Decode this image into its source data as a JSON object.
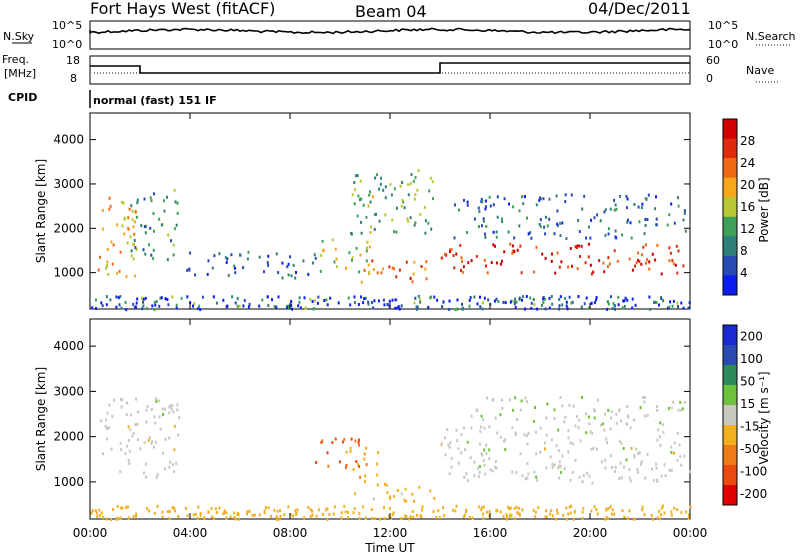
{
  "header": {
    "station": "Fort Hays West (fitACF)",
    "beam": "Beam 04",
    "date": "04/Dec/2011"
  },
  "strips": {
    "nsky_label": "N.Sky",
    "nsearch_label": "N.Search",
    "noise_ticks": [
      "10^5",
      "10^0"
    ],
    "freq_label": "Freq.",
    "freq_unit": "[MHz]",
    "freq_ticks": [
      "18",
      "8"
    ],
    "nave_label": "Nave",
    "nave_ticks": [
      "60",
      "0"
    ],
    "cpid_label": "CPID",
    "cpid_value": "normal (fast) 151 IF"
  },
  "chart_data": [
    {
      "type": "heatmap",
      "parameter": "Power",
      "xlabel": "Time UT",
      "ylabel": "Slant Range [km]",
      "x_ticks": [
        "00:00",
        "04:00",
        "08:00",
        "12:00",
        "16:00",
        "20:00",
        "00:00"
      ],
      "xlim_hours": [
        0,
        24
      ],
      "y_ticks": [
        1000,
        2000,
        3000,
        4000
      ],
      "ylim": [
        180,
        4600
      ],
      "colorbar": {
        "label": "Power [dB]",
        "ticks": [
          "4",
          "8",
          "12",
          "16",
          "20",
          "24",
          "28"
        ],
        "range": [
          0,
          30
        ],
        "colors": [
          "#0a1ef0",
          "#284ab4",
          "#2f7f7a",
          "#3fa05a",
          "#b8c832",
          "#f5a81c",
          "#ef6a14",
          "#e02a10",
          "#d00000"
        ]
      },
      "regions": [
        {
          "t0": 0.3,
          "t1": 1.8,
          "r0": 900,
          "r1": 2800,
          "value": 18
        },
        {
          "t0": 1.6,
          "t1": 3.5,
          "r0": 1300,
          "r1": 2950,
          "value": 10
        },
        {
          "t0": 3.8,
          "t1": 9.0,
          "r0": 900,
          "r1": 1500,
          "value": 6
        },
        {
          "t0": 9.0,
          "t1": 11.3,
          "r0": 1000,
          "r1": 1800,
          "value": 14
        },
        {
          "t0": 10.4,
          "t1": 13.9,
          "r0": 1900,
          "r1": 3400,
          "value": 12
        },
        {
          "t0": 10.5,
          "t1": 13.5,
          "r0": 800,
          "r1": 1300,
          "value": 22
        },
        {
          "t0": 14.0,
          "t1": 24.0,
          "r0": 1000,
          "r1": 1700,
          "value": 26
        },
        {
          "t0": 14.5,
          "t1": 23.8,
          "r0": 1800,
          "r1": 2800,
          "value": 7
        }
      ]
    },
    {
      "type": "heatmap",
      "parameter": "Velocity",
      "xlabel": "Time UT",
      "ylabel": "Slant Range [km]",
      "x_ticks": [
        "00:00",
        "04:00",
        "08:00",
        "12:00",
        "16:00",
        "20:00",
        "00:00"
      ],
      "xlim_hours": [
        0,
        24
      ],
      "y_ticks": [
        1000,
        2000,
        3000,
        4000
      ],
      "ylim": [
        180,
        4600
      ],
      "colorbar": {
        "label": "Velocity [m s⁻¹]",
        "ticks": [
          "200",
          "100",
          "50",
          "15",
          "-15",
          "-50",
          "-100",
          "-200"
        ],
        "range": [
          -250,
          250
        ],
        "colors": [
          "#1a2ad0",
          "#2a4ab0",
          "#2f8a5a",
          "#6cc23a",
          "#c8c8c0",
          "#f2b020",
          "#ef7a18",
          "#e84a10",
          "#e00000"
        ]
      },
      "regions": [
        {
          "t0": 0.3,
          "t1": 3.6,
          "r0": 1100,
          "r1": 2900,
          "value": 0
        },
        {
          "t0": 9.0,
          "t1": 10.8,
          "r0": 1300,
          "r1": 2000,
          "value": -150
        },
        {
          "t0": 10.0,
          "t1": 11.5,
          "r0": 1000,
          "r1": 1800,
          "value": -80
        },
        {
          "t0": 10.5,
          "t1": 13.8,
          "r0": 600,
          "r1": 1000,
          "value": -40
        },
        {
          "t0": 14.0,
          "t1": 24.0,
          "r0": 1000,
          "r1": 2300,
          "value": 0
        },
        {
          "t0": 15.0,
          "t1": 23.8,
          "r0": 2300,
          "r1": 2900,
          "value": 10
        }
      ]
    }
  ]
}
